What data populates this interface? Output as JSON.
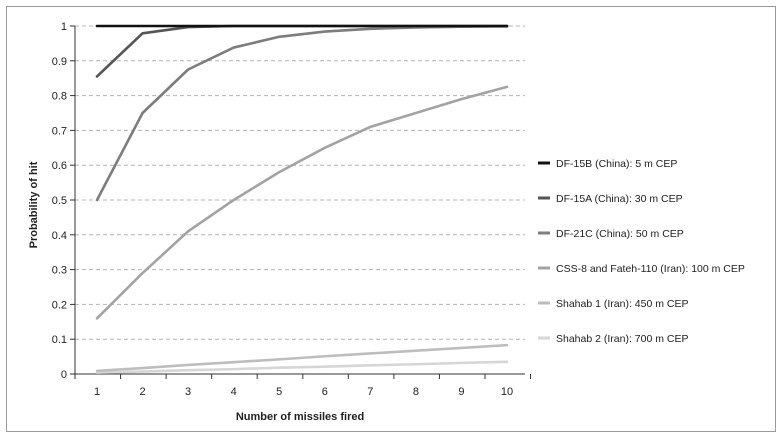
{
  "chart_data": {
    "type": "line",
    "title": "",
    "xlabel": "Number of missiles fired",
    "ylabel": "Probability of hit",
    "x": [
      1,
      2,
      3,
      4,
      5,
      6,
      7,
      8,
      9,
      10
    ],
    "xlim": [
      1,
      10
    ],
    "ylim": [
      0,
      1
    ],
    "yticks": [
      "0",
      "0.1",
      "0.2",
      "0.3",
      "0.4",
      "0.5",
      "0.6",
      "0.7",
      "0.8",
      "0.9",
      "1"
    ],
    "xticks": [
      "1",
      "2",
      "3",
      "4",
      "5",
      "6",
      "7",
      "8",
      "9",
      "10"
    ],
    "grid": "horizontal dashed",
    "legend_position": "right",
    "series": [
      {
        "name": "DF-15B (China): 5 m CEP",
        "color": "#111111",
        "values": [
          1,
          1,
          1,
          1,
          1,
          1,
          1,
          1,
          1,
          1
        ]
      },
      {
        "name": "DF-15A (China): 30 m CEP",
        "color": "#555555",
        "values": [
          0.855,
          0.979,
          0.997,
          1,
          1,
          1,
          1,
          1,
          1,
          1
        ]
      },
      {
        "name": "DF-21C (China): 50 m CEP",
        "color": "#7d7d7d",
        "values": [
          0.5,
          0.75,
          0.875,
          0.938,
          0.969,
          0.984,
          0.992,
          0.996,
          0.998,
          0.999
        ]
      },
      {
        "name": "CSS-8 and Fateh-110 (Iran): 100 m CEP",
        "color": "#a3a3a3",
        "values": [
          0.16,
          0.29,
          0.41,
          0.5,
          0.58,
          0.65,
          0.71,
          0.75,
          0.79,
          0.825
        ]
      },
      {
        "name": "Shahab 1 (Iran): 450 m CEP",
        "color": "#bdbdbd",
        "values": [
          0.009,
          0.017,
          0.026,
          0.034,
          0.042,
          0.051,
          0.059,
          0.067,
          0.075,
          0.083
        ]
      },
      {
        "name": "Shahab 2 (Iran): 700 m CEP",
        "color": "#d6d6d6",
        "values": [
          0.004,
          0.007,
          0.011,
          0.014,
          0.018,
          0.021,
          0.025,
          0.028,
          0.032,
          0.035
        ]
      }
    ]
  }
}
